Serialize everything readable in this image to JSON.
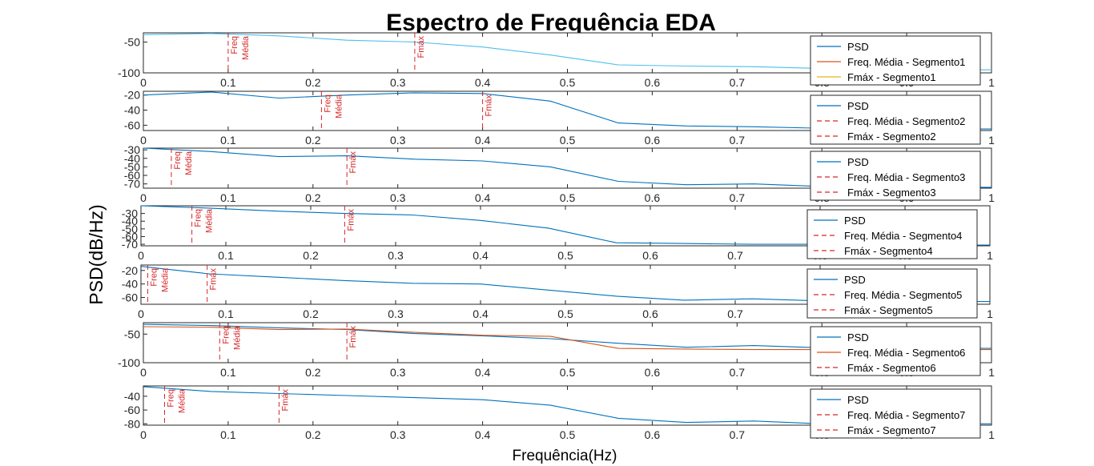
{
  "figure": {
    "title": "Espectro de Frequência EDA",
    "xlabel": "Frequência(Hz)",
    "ylabel": "PSD(dB/Hz)"
  },
  "colors": {
    "psd": "#0072BD",
    "psd_light": "#4DBEEE",
    "freq_media_line": "#D95319",
    "fmax_line": "#EDB120",
    "marker": "#D62728",
    "axis": "#262626"
  },
  "chart_data": [
    {
      "type": "line",
      "segment": 1,
      "xlim": [
        0,
        1
      ],
      "ylim": [
        -100,
        -35
      ],
      "yticks": [
        -50,
        -100
      ],
      "xticks": [
        0,
        0.1,
        0.2,
        0.3,
        0.4,
        0.5,
        0.6,
        0.7,
        0.8,
        0.9,
        1
      ],
      "legend_placement": "top-right",
      "series": [
        {
          "name": "PSD",
          "color": "#4DBEEE",
          "x": [
            0,
            0.08,
            0.16,
            0.24,
            0.32,
            0.4,
            0.48,
            0.56,
            0.64,
            0.72,
            0.8,
            0.88,
            0.96,
            1.0
          ],
          "y": [
            -38,
            -36,
            -40,
            -47,
            -50,
            -58,
            -71,
            -87,
            -89,
            -90,
            -93,
            -95,
            -95,
            -95
          ]
        }
      ],
      "legend": [
        "PSD",
        "Freq. Média - Segmento1",
        "Fmáx - Segmento1"
      ],
      "markers": [
        {
          "x": 0.1,
          "label": "Freq Média"
        },
        {
          "x": 0.32,
          "label": "Fmáx"
        }
      ]
    },
    {
      "type": "line",
      "segment": 2,
      "xlim": [
        0,
        1
      ],
      "ylim": [
        -67,
        -15
      ],
      "yticks": [
        -20,
        -40,
        -60
      ],
      "xticks": [
        0,
        0.1,
        0.2,
        0.3,
        0.4,
        0.5,
        0.6,
        0.7,
        0.8,
        0.9,
        1
      ],
      "legend_placement": "top-right",
      "series": [
        {
          "name": "PSD",
          "color": "#0072BD",
          "x": [
            0,
            0.08,
            0.16,
            0.24,
            0.32,
            0.4,
            0.48,
            0.56,
            0.64,
            0.72,
            0.8,
            0.88,
            0.96,
            1.0
          ],
          "y": [
            -20,
            -16,
            -24,
            -20,
            -17,
            -18,
            -28,
            -57,
            -61,
            -62,
            -64,
            -65,
            -65,
            -65
          ]
        }
      ],
      "legend": [
        "PSD",
        "Freq. Média - Segmento2",
        "Fmáx - Segmento2"
      ],
      "markers": [
        {
          "x": 0.21,
          "label": "Freq Média"
        },
        {
          "x": 0.4,
          "label": "Fmáx"
        }
      ]
    },
    {
      "type": "line",
      "segment": 3,
      "xlim": [
        0,
        1
      ],
      "ylim": [
        -75,
        -28
      ],
      "yticks": [
        -30,
        -40,
        -50,
        -60,
        -70
      ],
      "xticks": [
        0,
        0.1,
        0.2,
        0.3,
        0.4,
        0.5,
        0.6,
        0.7,
        0.8,
        0.9,
        1
      ],
      "legend_placement": "top-right",
      "series": [
        {
          "name": "PSD",
          "color": "#0072BD",
          "x": [
            0,
            0.08,
            0.16,
            0.24,
            0.32,
            0.4,
            0.48,
            0.56,
            0.64,
            0.72,
            0.8,
            0.88,
            0.96,
            1.0
          ],
          "y": [
            -28,
            -32,
            -38,
            -37,
            -41,
            -43,
            -50,
            -67,
            -71,
            -70,
            -73,
            -74,
            -74,
            -74
          ]
        }
      ],
      "legend": [
        "PSD",
        "Freq. Média - Segmento3",
        "Fmáx - Segmento3"
      ],
      "markers": [
        {
          "x": 0.033,
          "label": "Freq Média"
        },
        {
          "x": 0.24,
          "label": "Fmáx"
        }
      ]
    },
    {
      "type": "line",
      "segment": 4,
      "xlim": [
        0,
        1
      ],
      "ylim": [
        -72,
        -20
      ],
      "yticks": [
        -30,
        -40,
        -50,
        -60,
        -70
      ],
      "xticks": [
        0,
        0.1,
        0.2,
        0.3,
        0.4,
        0.5,
        0.6,
        0.7,
        0.8,
        0.9,
        1
      ],
      "legend_placement": "top-right",
      "series": [
        {
          "name": "PSD",
          "color": "#0072BD",
          "x": [
            0,
            0.08,
            0.16,
            0.24,
            0.32,
            0.4,
            0.48,
            0.56,
            0.64,
            0.72,
            0.8,
            0.88,
            0.96,
            1.0
          ],
          "y": [
            -20,
            -23,
            -27,
            -30,
            -32,
            -39,
            -49,
            -68,
            -69,
            -70,
            -70,
            -71,
            -71,
            -71
          ]
        }
      ],
      "legend": [
        "PSD",
        "Freq. Média - Segmento4",
        "Fmáx - Segmento4"
      ],
      "markers": [
        {
          "x": 0.06,
          "label": "Freq Média"
        },
        {
          "x": 0.24,
          "label": "Fmáx"
        }
      ]
    },
    {
      "type": "line",
      "segment": 5,
      "xlim": [
        0,
        1
      ],
      "ylim": [
        -70,
        -12
      ],
      "yticks": [
        -20,
        -40,
        -60
      ],
      "xticks": [
        0,
        0.1,
        0.2,
        0.3,
        0.4,
        0.5,
        0.6,
        0.7,
        0.8,
        0.9,
        1
      ],
      "legend_placement": "top-right",
      "series": [
        {
          "name": "PSD",
          "color": "#0072BD",
          "x": [
            0,
            0.08,
            0.16,
            0.24,
            0.32,
            0.4,
            0.48,
            0.56,
            0.64,
            0.72,
            0.8,
            0.88,
            0.96,
            1.0
          ],
          "y": [
            -14,
            -25,
            -30,
            -35,
            -39,
            -40,
            -49,
            -58,
            -64,
            -62,
            -65,
            -66,
            -66,
            -66
          ]
        }
      ],
      "legend": [
        "PSD",
        "Freq. Média - Segmento5",
        "Fmáx - Segmento5"
      ],
      "markers": [
        {
          "x": 0.008,
          "label": "Freq Média"
        },
        {
          "x": 0.078,
          "label": "Fmáx"
        }
      ]
    },
    {
      "type": "line",
      "segment": 6,
      "xlim": [
        0,
        1
      ],
      "ylim": [
        -100,
        -30
      ],
      "yticks": [
        -50,
        -100
      ],
      "xticks": [
        0,
        0.1,
        0.2,
        0.3,
        0.4,
        0.5,
        0.6,
        0.7,
        0.8,
        0.9,
        1
      ],
      "legend_placement": "top-right",
      "series": [
        {
          "name": "PSD",
          "color": "#0072BD",
          "x": [
            0,
            0.08,
            0.16,
            0.24,
            0.32,
            0.4,
            0.48,
            0.56,
            0.64,
            0.72,
            0.8,
            0.88,
            0.96,
            1.0
          ],
          "y": [
            -33,
            -35,
            -39,
            -42,
            -49,
            -53,
            -58,
            -66,
            -73,
            -70,
            -74,
            -75,
            -75,
            -75
          ]
        },
        {
          "name": "Freq. Média - Segmento6",
          "color": "#D95319",
          "x": [
            0,
            0.08,
            0.16,
            0.24,
            0.32,
            0.4,
            0.48,
            0.56,
            0.64,
            0.72,
            0.8,
            0.88,
            0.96,
            1.0
          ],
          "y": [
            -37,
            -38,
            -42,
            -41,
            -47,
            -52,
            -54,
            -75,
            -76,
            -77,
            -77,
            -77,
            -77,
            -77
          ]
        }
      ],
      "legend": [
        "PSD",
        "Freq. Média - Segmento6",
        "Fmáx - Segmento6"
      ],
      "markers": [
        {
          "x": 0.09,
          "label": "Freq Média"
        },
        {
          "x": 0.24,
          "label": "Fmáx"
        }
      ]
    },
    {
      "type": "line",
      "segment": 7,
      "xlim": [
        0,
        1
      ],
      "ylim": [
        -82,
        -25
      ],
      "yticks": [
        -40,
        -60,
        -80
      ],
      "xticks": [
        0,
        0.1,
        0.2,
        0.3,
        0.4,
        0.5,
        0.6,
        0.7,
        0.8,
        0.9,
        1
      ],
      "legend_placement": "top-right",
      "series": [
        {
          "name": "PSD",
          "color": "#0072BD",
          "x": [
            0,
            0.08,
            0.16,
            0.24,
            0.32,
            0.4,
            0.48,
            0.56,
            0.64,
            0.72,
            0.8,
            0.88,
            0.96,
            1.0
          ],
          "y": [
            -26,
            -33,
            -36,
            -39,
            -42,
            -45,
            -53,
            -72,
            -78,
            -76,
            -80,
            -80,
            -80,
            -80
          ]
        }
      ],
      "legend": [
        "PSD",
        "Freq. Média - Segmento7",
        "Fmáx - Segmento7"
      ],
      "markers": [
        {
          "x": 0.025,
          "label": "Freq Média"
        },
        {
          "x": 0.16,
          "label": "Fmáx"
        }
      ]
    }
  ]
}
